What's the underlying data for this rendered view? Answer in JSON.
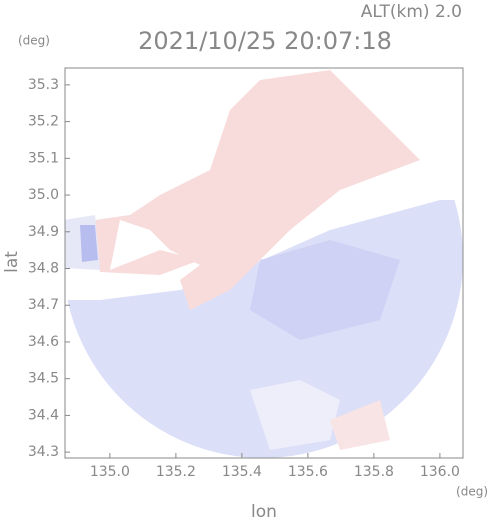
{
  "chart_data": {
    "type": "image",
    "subtitle": "ALT(km) 2.0",
    "title": "2021/10/25 20:07:18",
    "y_unit": "(deg)",
    "x_unit": "(deg)",
    "x_label": "lon",
    "y_label": "lat",
    "xlim": [
      134.864,
      136.07
    ],
    "ylim": [
      34.284,
      35.346
    ],
    "xticks": [
      {
        "value": 135,
        "label": "135.0"
      },
      135.2,
      135.4,
      135.6,
      135.8,
      {
        "value": 136,
        "label": "136.0"
      }
    ],
    "yticks": [
      34.3,
      34.4,
      34.5,
      34.6,
      34.7,
      34.8,
      34.9,
      {
        "value": 35,
        "label": "35.0"
      },
      35.1,
      35.2,
      35.3
    ]
  }
}
